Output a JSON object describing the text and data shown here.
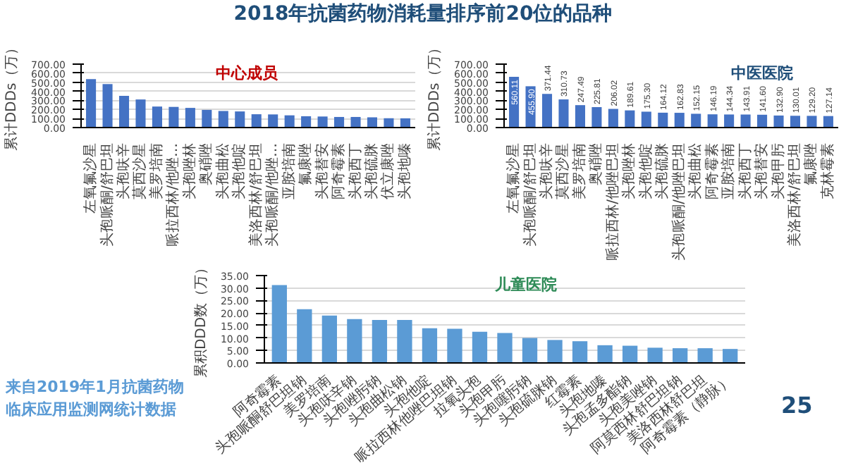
{
  "chart_data": [
    {
      "type": "bar",
      "title": "中心成员",
      "ylabel": "累计DDDs（万）",
      "annotations": [
        "2018年抗菌药物消耗量排序前20位的品种"
      ],
      "categories": [
        "左氧氟沙星",
        "头孢哌酮/舒巴坦",
        "头孢呋辛",
        "莫西沙星",
        "美罗培南",
        "哌拉西林/他唑…",
        "头孢唑林",
        "奥硝唑",
        "头孢曲松",
        "头孢他啶",
        "美洛西林/舒巴坦",
        "头孢哌酮/他唑…",
        "亚胺培南",
        "氟康唑",
        "头孢替安",
        "阿奇霉素",
        "头孢西丁",
        "头孢硫脒",
        "伏立康唑",
        "头孢地嗪"
      ],
      "values": [
        535,
        480,
        350,
        310,
        232,
        228,
        217,
        195,
        183,
        178,
        147,
        145,
        135,
        125,
        122,
        117,
        117,
        113,
        103,
        102
      ],
      "color": "#4472c4",
      "ylim": [
        0,
        700
      ],
      "yticks": [
        {
          "value": 0,
          "label": "0.00"
        },
        {
          "value": 100,
          "label": "100.00"
        },
        {
          "value": 200,
          "label": "200.00"
        },
        {
          "value": 300,
          "label": "300.00"
        },
        {
          "value": 400,
          "label": "400.00"
        },
        {
          "value": 500,
          "label": "500.00"
        },
        {
          "value": 600,
          "label": "600.00"
        },
        {
          "value": 700,
          "label": "700.00"
        }
      ],
      "grid": "y"
    },
    {
      "type": "bar",
      "title": "中医医院",
      "ylabel": "累计DDDs（万）",
      "categories": [
        "左氧氟沙星",
        "头孢哌酮/舒巴坦",
        "头孢呋辛",
        "莫西沙星",
        "美罗培南",
        "奥硝唑",
        "哌拉西林/他唑巴坦",
        "头孢唑林",
        "头孢他啶",
        "头孢硫脒",
        "头孢哌酮/他唑巴坦",
        "头孢曲松",
        "阿奇霉素",
        "亚胺培南",
        "头孢西丁",
        "头孢替安",
        "头孢甲肟",
        "美洛西林/舒巴坦",
        "氟康唑",
        "克林霉素"
      ],
      "values": [
        560.11,
        455.9,
        371.44,
        310.73,
        247.49,
        225.81,
        206.02,
        189.61,
        175.3,
        164.12,
        162.83,
        152.15,
        146.19,
        144.34,
        143.91,
        141.6,
        132.9,
        130.01,
        129.2,
        127.14
      ],
      "value_labels": [
        "560.11",
        "455.90",
        "371.44",
        "310.73",
        "247.49",
        "225.81",
        "206.02",
        "189.61",
        "175.30",
        "164.12",
        "162.83",
        "152.15",
        "146.19",
        "144.34",
        "143.91",
        "141.60",
        "132.90",
        "130.01",
        "129.20",
        "127.14"
      ],
      "color": "#4472c4",
      "ylim": [
        0,
        700
      ],
      "yticks": [
        {
          "value": 0,
          "label": "0.00"
        },
        {
          "value": 100,
          "label": "100.00"
        },
        {
          "value": 200,
          "label": "200.00"
        },
        {
          "value": 300,
          "label": "300.00"
        },
        {
          "value": 400,
          "label": "400.00"
        },
        {
          "value": 500,
          "label": "500.00"
        },
        {
          "value": 600,
          "label": "600.00"
        },
        {
          "value": 700,
          "label": "700.00"
        }
      ]
    },
    {
      "type": "bar",
      "title": "儿童医院",
      "ylabel": "累积DDD数（万）",
      "annotations": [
        "来自2019年1月抗菌药物临床应用监测网统计数据",
        "25"
      ],
      "categories": [
        "阿奇霉素",
        "头孢哌酮舒巴坦钠",
        "美罗培南",
        "头孢呋辛钠",
        "头孢唑肟钠",
        "头孢曲松钠",
        "头孢他啶",
        "哌拉西林他唑巴坦钠",
        "拉氧头孢",
        "头孢甲肟",
        "头孢噻肟钠",
        "头孢硫脒钠",
        "红霉素",
        "头孢地嗪",
        "头孢孟多酯钠",
        "头孢美唑钠",
        "阿莫西林舒巴坦钠",
        "美洛西林舒巴坦",
        "阿奇霉素（静脉）"
      ],
      "values": [
        31.2,
        21.5,
        19.0,
        17.6,
        17.2,
        17.2,
        13.9,
        13.7,
        12.5,
        12.0,
        10.0,
        9.2,
        8.7,
        7.1,
        6.9,
        6.1,
        5.9,
        5.9,
        5.6
      ],
      "color": "#5b9bd5",
      "ylim": [
        0,
        35
      ],
      "yticks": [
        {
          "value": 0,
          "label": "0.00"
        },
        {
          "value": 5,
          "label": "5.00"
        },
        {
          "value": 10,
          "label": "10.00"
        },
        {
          "value": 15,
          "label": "15.00"
        },
        {
          "value": 20,
          "label": "20.00"
        },
        {
          "value": 25,
          "label": "25.00"
        },
        {
          "value": 30,
          "label": "30.00"
        },
        {
          "value": 35,
          "label": "35.00"
        }
      ],
      "grid": "y"
    }
  ]
}
